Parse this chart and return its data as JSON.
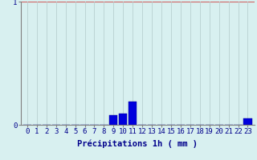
{
  "hours": [
    0,
    1,
    2,
    3,
    4,
    5,
    6,
    7,
    8,
    9,
    10,
    11,
    12,
    13,
    14,
    15,
    16,
    17,
    18,
    19,
    20,
    21,
    22,
    23
  ],
  "values": [
    0,
    0,
    0,
    0,
    0,
    0,
    0,
    0,
    0,
    0.08,
    0.09,
    0.19,
    0,
    0,
    0,
    0,
    0,
    0,
    0,
    0,
    0,
    0,
    0,
    0.05
  ],
  "bar_color": "#0000dd",
  "bar_edge_color": "#00008b",
  "background_color": "#d8f0f0",
  "grid_x_color": "#b8d0d0",
  "grid_y_color": "#d06060",
  "axis_color": "#808080",
  "text_color": "#00008b",
  "xlabel": "Précipitations 1h ( mm )",
  "ylim": [
    0,
    1.0
  ],
  "yticks": [
    0,
    1
  ],
  "xlabel_fontsize": 7.5,
  "tick_fontsize": 6.5
}
